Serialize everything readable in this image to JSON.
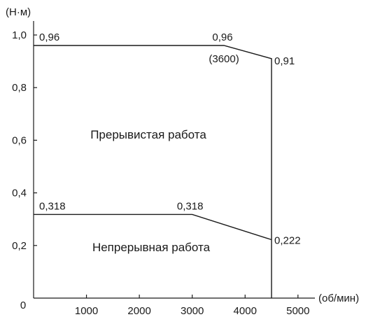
{
  "chart_data": {
    "type": "line",
    "x_unit_label": "(об/мин)",
    "y_unit_label": "(Н·м)",
    "origin_label": "0",
    "xlim": [
      0,
      5000
    ],
    "ylim": [
      0,
      1.0
    ],
    "x_ticks": [
      {
        "value": 1000,
        "label": "1000"
      },
      {
        "value": 2000,
        "label": "2000"
      },
      {
        "value": 3000,
        "label": "3000"
      },
      {
        "value": 4000,
        "label": "4000"
      },
      {
        "value": 5000,
        "label": "5000"
      }
    ],
    "y_ticks": [
      {
        "value": 0.2,
        "label": "0,2"
      },
      {
        "value": 0.4,
        "label": "0,4"
      },
      {
        "value": 0.6,
        "label": "0,6"
      },
      {
        "value": 0.8,
        "label": "0,8"
      },
      {
        "value": 1.0,
        "label": "1,0"
      }
    ],
    "series": [
      {
        "points": [
          [
            0,
            0.96
          ],
          [
            3600,
            0.96
          ],
          [
            4500,
            0.91
          ],
          [
            4500,
            0
          ]
        ]
      },
      {
        "points": [
          [
            0,
            0.318
          ],
          [
            3000,
            0.318
          ],
          [
            4500,
            0.222
          ]
        ]
      }
    ],
    "annotations": [
      {
        "text": "0,96",
        "x": 0,
        "y": 0.96
      },
      {
        "text": "0,96",
        "x": 3600,
        "y": 0.96
      },
      {
        "text": "(3600)",
        "x": 3600,
        "y": 0.96
      },
      {
        "text": "0,91",
        "x": 4500,
        "y": 0.91
      },
      {
        "text": "0,318",
        "x": 0,
        "y": 0.318
      },
      {
        "text": "0,318",
        "x": 3000,
        "y": 0.318
      },
      {
        "text": "0,222",
        "x": 4500,
        "y": 0.222
      }
    ],
    "regions": [
      {
        "text": "Прерывистая работа"
      },
      {
        "text": "Непрерывная работа"
      }
    ]
  }
}
